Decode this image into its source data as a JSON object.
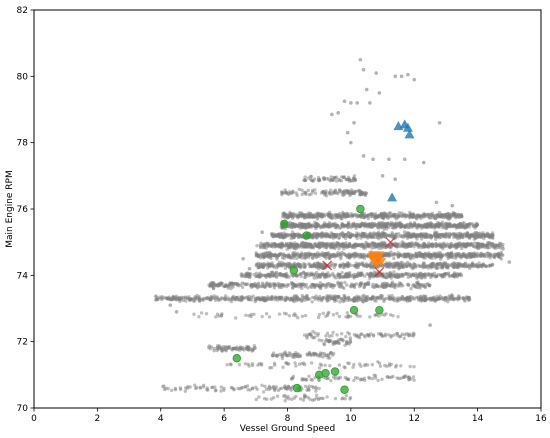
{
  "chart_data": {
    "type": "scatter",
    "xlabel": "Vessel Ground Speed",
    "ylabel": "Main Engine RPM",
    "xlim": [
      0,
      16
    ],
    "ylim": [
      70,
      82
    ],
    "xticks": [
      "0",
      "2",
      "4",
      "6",
      "8",
      "10",
      "12",
      "14",
      "16"
    ],
    "yticks": [
      "70",
      "72",
      "74",
      "76",
      "78",
      "80",
      "82"
    ],
    "grid": false,
    "colors": {
      "background_points": "#808080",
      "green": "#2ca02c",
      "blue": "#1f77b4",
      "orange": "#ff7f0e",
      "red": "#d62728"
    },
    "background_bands": [
      {
        "y": 73.3,
        "x": [
          3.8,
          13.8
        ],
        "count": 520
      },
      {
        "y": 73.7,
        "x": [
          5.5,
          12.5
        ],
        "count": 320
      },
      {
        "y": 74.0,
        "x": [
          6.5,
          13.5
        ],
        "count": 380
      },
      {
        "y": 74.3,
        "x": [
          7.0,
          14.5
        ],
        "count": 460
      },
      {
        "y": 74.6,
        "x": [
          7.0,
          14.8
        ],
        "count": 560
      },
      {
        "y": 74.9,
        "x": [
          7.0,
          14.8
        ],
        "count": 620
      },
      {
        "y": 75.2,
        "x": [
          7.5,
          14.5
        ],
        "count": 560
      },
      {
        "y": 75.5,
        "x": [
          7.8,
          14.0
        ],
        "count": 520
      },
      {
        "y": 75.8,
        "x": [
          7.8,
          13.5
        ],
        "count": 420
      },
      {
        "y": 76.5,
        "x": [
          7.8,
          10.5
        ],
        "count": 110
      },
      {
        "y": 76.9,
        "x": [
          8.5,
          10.2
        ],
        "count": 60
      },
      {
        "y": 72.2,
        "x": [
          8.5,
          12.0
        ],
        "count": 70
      },
      {
        "y": 72.0,
        "x": [
          9.0,
          10.0
        ],
        "count": 40
      },
      {
        "y": 71.8,
        "x": [
          5.5,
          7.0
        ],
        "count": 70
      },
      {
        "y": 71.6,
        "x": [
          7.5,
          9.5
        ],
        "count": 70
      },
      {
        "y": 71.3,
        "x": [
          6.0,
          12.0
        ],
        "count": 60
      },
      {
        "y": 70.9,
        "x": [
          8.0,
          12.0
        ],
        "count": 70
      },
      {
        "y": 70.6,
        "x": [
          4.0,
          9.0
        ],
        "count": 100
      },
      {
        "y": 70.3,
        "x": [
          7.0,
          10.0
        ],
        "count": 40
      },
      {
        "y": 72.8,
        "x": [
          5.0,
          11.5
        ],
        "count": 60
      }
    ],
    "background_scatter_points": [
      {
        "x": 10.3,
        "y": 80.5
      },
      {
        "x": 10.4,
        "y": 80.2
      },
      {
        "x": 10.8,
        "y": 80.1
      },
      {
        "x": 11.4,
        "y": 80.0
      },
      {
        "x": 11.6,
        "y": 80.0
      },
      {
        "x": 11.8,
        "y": 80.05
      },
      {
        "x": 12.0,
        "y": 79.9
      },
      {
        "x": 10.5,
        "y": 79.6
      },
      {
        "x": 10.9,
        "y": 79.5
      },
      {
        "x": 9.8,
        "y": 79.25
      },
      {
        "x": 10.0,
        "y": 79.2
      },
      {
        "x": 10.2,
        "y": 79.2
      },
      {
        "x": 10.6,
        "y": 79.2
      },
      {
        "x": 9.6,
        "y": 78.9
      },
      {
        "x": 9.4,
        "y": 78.85
      },
      {
        "x": 10.1,
        "y": 78.6
      },
      {
        "x": 12.8,
        "y": 78.6
      },
      {
        "x": 9.9,
        "y": 78.3
      },
      {
        "x": 10.0,
        "y": 78.0
      },
      {
        "x": 10.4,
        "y": 77.6
      },
      {
        "x": 11.2,
        "y": 77.5
      },
      {
        "x": 11.7,
        "y": 77.5
      },
      {
        "x": 12.3,
        "y": 77.4
      },
      {
        "x": 10.7,
        "y": 77.5
      },
      {
        "x": 11.0,
        "y": 77.0
      },
      {
        "x": 11.4,
        "y": 76.9
      },
      {
        "x": 12.7,
        "y": 76.2
      },
      {
        "x": 13.2,
        "y": 76.1
      },
      {
        "x": 7.2,
        "y": 75.3
      },
      {
        "x": 6.8,
        "y": 74.2
      },
      {
        "x": 6.6,
        "y": 74.5
      },
      {
        "x": 15.0,
        "y": 74.4
      },
      {
        "x": 14.8,
        "y": 74.8
      },
      {
        "x": 4.5,
        "y": 72.9
      },
      {
        "x": 4.3,
        "y": 73.1
      },
      {
        "x": 12.5,
        "y": 72.5
      }
    ],
    "series": [
      {
        "marker": "circle",
        "color": "#2ca02c",
        "points": [
          {
            "x": 7.9,
            "y": 75.55
          },
          {
            "x": 8.6,
            "y": 75.2
          },
          {
            "x": 10.3,
            "y": 76.0
          },
          {
            "x": 8.2,
            "y": 74.15
          },
          {
            "x": 10.1,
            "y": 72.95
          },
          {
            "x": 10.9,
            "y": 72.95
          },
          {
            "x": 6.4,
            "y": 71.5
          },
          {
            "x": 8.3,
            "y": 70.6
          },
          {
            "x": 9.0,
            "y": 71.0
          },
          {
            "x": 9.2,
            "y": 71.05
          },
          {
            "x": 9.5,
            "y": 71.1
          },
          {
            "x": 9.8,
            "y": 70.55
          }
        ]
      },
      {
        "marker": "triangle",
        "color": "#1f77b4",
        "points": [
          {
            "x": 11.5,
            "y": 78.5
          },
          {
            "x": 11.7,
            "y": 78.55
          },
          {
            "x": 11.8,
            "y": 78.45
          },
          {
            "x": 11.85,
            "y": 78.25
          },
          {
            "x": 11.3,
            "y": 76.35
          }
        ]
      },
      {
        "marker": "triangle-down",
        "color": "#ff7f0e",
        "points": [
          {
            "x": 10.65,
            "y": 74.55
          },
          {
            "x": 10.75,
            "y": 74.45
          },
          {
            "x": 10.85,
            "y": 74.5
          },
          {
            "x": 10.95,
            "y": 74.4
          },
          {
            "x": 10.8,
            "y": 74.35
          },
          {
            "x": 10.7,
            "y": 74.6
          },
          {
            "x": 10.9,
            "y": 74.6
          }
        ]
      },
      {
        "marker": "x",
        "color": "#d62728",
        "points": [
          {
            "x": 11.25,
            "y": 75.0
          },
          {
            "x": 10.9,
            "y": 74.1
          },
          {
            "x": 9.25,
            "y": 74.3
          }
        ]
      }
    ]
  }
}
